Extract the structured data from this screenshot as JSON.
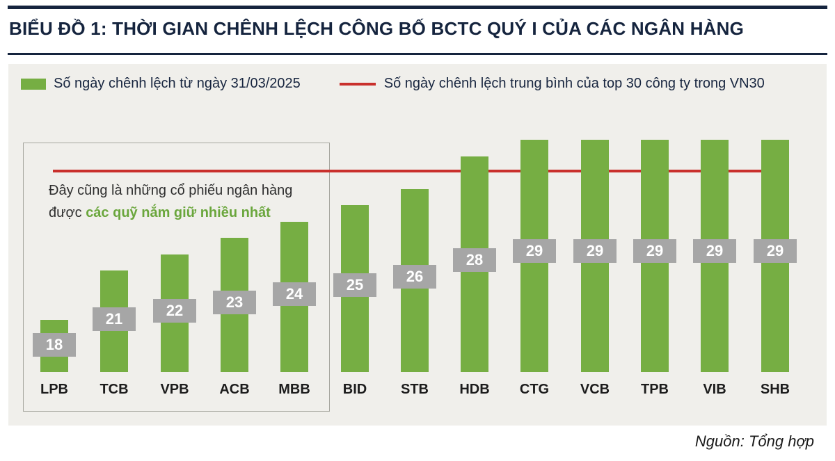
{
  "header": {
    "title": "BIỂU ĐỒ 1: THỜI GIAN CHÊNH LỆCH CÔNG BỐ BCTC QUÝ I CỦA CÁC NGÂN HÀNG"
  },
  "legend": {
    "bar_label": "Số ngày chênh lệch từ ngày 31/03/2025",
    "line_label": "Số ngày chênh lệch trung bình của top 30 công ty trong VN30"
  },
  "annotation": {
    "line1": "Đây cũng là những cổ phiếu ngân hàng",
    "line2_prefix": "được ",
    "line2_highlight": "các quỹ nắm giữ nhiều nhất"
  },
  "footer": {
    "source": "Nguồn: Tổng hợp"
  },
  "colors": {
    "bar": "#76ae43",
    "avg_line": "#c9302c",
    "label_box": "#a6a6a6",
    "title": "#15243e",
    "panel_bg": "#f0efeb",
    "highlight": "#6aa63c"
  },
  "chart_data": {
    "type": "bar",
    "title": "BIỂU ĐỒ 1: THỜI GIAN CHÊNH LỆCH CÔNG BỐ BCTC QUÝ I CỦA CÁC NGÂN HÀNG",
    "categories": [
      "LPB",
      "TCB",
      "VPB",
      "ACB",
      "MBB",
      "BID",
      "STB",
      "HDB",
      "CTG",
      "VCB",
      "TPB",
      "VIB",
      "SHB"
    ],
    "series": [
      {
        "name": "Số ngày chênh lệch từ ngày 31/03/2025",
        "values": [
          18,
          21,
          22,
          23,
          24,
          25,
          26,
          28,
          29,
          29,
          29,
          29,
          29
        ]
      }
    ],
    "average_line": {
      "name": "Số ngày chênh lệch trung bình của top 30 công ty trong VN30",
      "value": 27.2
    },
    "xlabel": "",
    "ylabel": "",
    "ylim": [
      15,
      29.5
    ],
    "grid": false,
    "legend_position": "top-left",
    "source": "Nguồn: Tổng hợp"
  }
}
